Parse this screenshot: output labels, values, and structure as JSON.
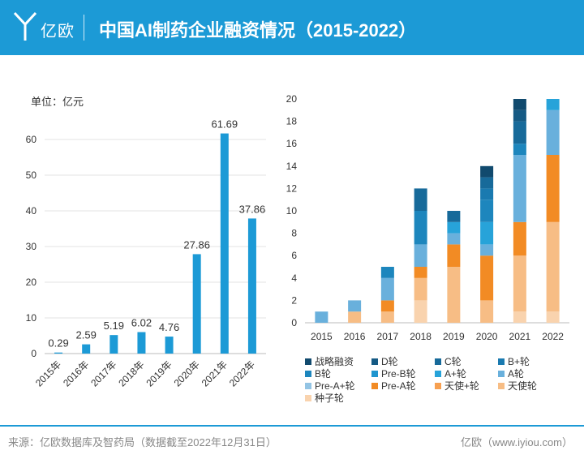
{
  "header": {
    "logo_text": "亿欧",
    "title": "中国AI制药企业融资情况（2015-2022）"
  },
  "footer": {
    "source": "来源：亿欧数据库及智药局（数据截至2022年12月31日）",
    "brand": "亿欧（www.iyiou.com）"
  },
  "colors": {
    "header_bg": "#1c9ad6",
    "bar": "#1c9ad6"
  },
  "chart_data": [
    {
      "type": "bar",
      "unit_label": "单位：亿元",
      "categories": [
        "2015年",
        "2016年",
        "2017年",
        "2018年",
        "2019年",
        "2020年",
        "2021年",
        "2022年"
      ],
      "values": [
        0.29,
        2.59,
        5.19,
        6.02,
        4.76,
        27.86,
        61.69,
        37.86
      ],
      "value_labels": [
        "0.29",
        "2.59",
        "5.19",
        "6.02",
        "4.76",
        "27.86",
        "61.69",
        "37.86"
      ],
      "ylim": [
        0,
        60
      ],
      "yticks": [
        0,
        10,
        20,
        30,
        40,
        50,
        60
      ],
      "grid": true
    },
    {
      "type": "bar",
      "stacked": true,
      "categories": [
        "2015",
        "2016",
        "2017",
        "2018",
        "2019",
        "2020",
        "2021",
        "2022"
      ],
      "ylim": [
        0,
        20
      ],
      "yticks": [
        0,
        2,
        4,
        6,
        8,
        10,
        12,
        14,
        16,
        18,
        20
      ],
      "legend_position": "bottom",
      "series": [
        {
          "name": "种子轮",
          "color": "#f9d3ae",
          "values": [
            0,
            0,
            0,
            2,
            0,
            0,
            1,
            1
          ]
        },
        {
          "name": "天使轮",
          "color": "#f7bd85",
          "values": [
            0,
            1,
            1,
            2,
            5,
            2,
            5,
            8
          ]
        },
        {
          "name": "天使+轮",
          "color": "#f7a050",
          "values": [
            0,
            0,
            0,
            0,
            0,
            0,
            0,
            0
          ]
        },
        {
          "name": "Pre-A轮",
          "color": "#f28b24",
          "values": [
            0,
            0,
            1,
            1,
            2,
            4,
            3,
            6
          ]
        },
        {
          "name": "Pre-A+轮",
          "color": "#93c4e4",
          "values": [
            0,
            0,
            0,
            0,
            0,
            0,
            0,
            0
          ]
        },
        {
          "name": "A轮",
          "color": "#69b0dc",
          "values": [
            1,
            1,
            2,
            2,
            1,
            1,
            6,
            4
          ]
        },
        {
          "name": "A+轮",
          "color": "#27a3d9",
          "values": [
            0,
            0,
            0,
            0,
            1,
            2,
            0,
            1
          ]
        },
        {
          "name": "Pre-B轮",
          "color": "#1f95cf",
          "values": [
            0,
            0,
            0,
            0,
            0,
            0,
            0,
            0
          ]
        },
        {
          "name": "B轮",
          "color": "#1d86bd",
          "values": [
            0,
            0,
            1,
            3,
            0,
            2,
            1,
            0
          ]
        },
        {
          "name": "B+轮",
          "color": "#1a7ab0",
          "values": [
            0,
            0,
            0,
            0,
            0,
            1,
            0,
            0
          ]
        },
        {
          "name": "C轮",
          "color": "#176a9a",
          "values": [
            0,
            0,
            0,
            2,
            1,
            1,
            2,
            0
          ]
        },
        {
          "name": "D轮",
          "color": "#155a84",
          "values": [
            0,
            0,
            0,
            0,
            0,
            0,
            1,
            0
          ]
        },
        {
          "name": "战略融资",
          "color": "#114a6e",
          "values": [
            0,
            0,
            0,
            0,
            0,
            1,
            1,
            0
          ]
        }
      ],
      "legend_order": [
        "战略融资",
        "D轮",
        "C轮",
        "B+轮",
        "B轮",
        "Pre-B轮",
        "A+轮",
        "A轮",
        "Pre-A+轮",
        "Pre-A轮",
        "天使+轮",
        "天使轮",
        "种子轮"
      ]
    }
  ]
}
